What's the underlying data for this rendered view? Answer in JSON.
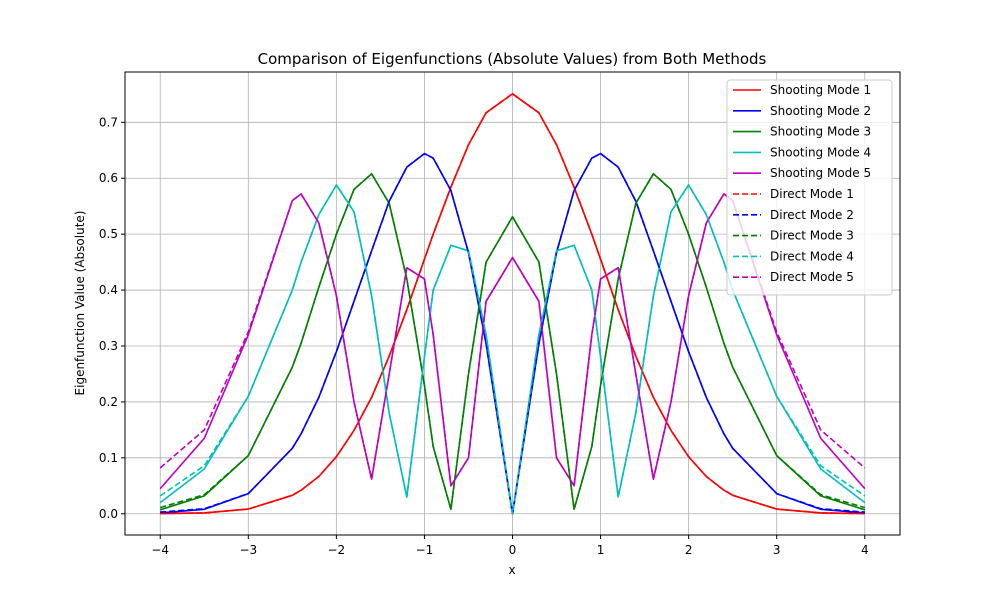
{
  "chart_data": {
    "type": "line",
    "title": "Comparison of Eigenfunctions (Absolute Values) from Both Methods",
    "xlabel": "x",
    "ylabel": "Eigenfunction Value (Absolute)",
    "xlim": [
      -4.4,
      4.4
    ],
    "ylim": [
      -0.038,
      0.79
    ],
    "xticks": [
      -4,
      -3,
      -2,
      -1,
      0,
      1,
      2,
      3,
      4
    ],
    "xtick_labels": [
      "−4",
      "−3",
      "−2",
      "−1",
      "0",
      "1",
      "2",
      "3",
      "4"
    ],
    "yticks": [
      0.0,
      0.1,
      0.2,
      0.3,
      0.4,
      0.5,
      0.6,
      0.7
    ],
    "ytick_labels": [
      "0.0",
      "0.1",
      "0.2",
      "0.3",
      "0.4",
      "0.5",
      "0.6",
      "0.7"
    ],
    "grid": true,
    "legend_position": "top-right",
    "x": [
      -4.0,
      -3.5,
      -3.0,
      -2.5,
      -2.4,
      -2.2,
      -2.0,
      -1.8,
      -1.6,
      -1.4,
      -1.2,
      -1.0,
      -0.9,
      -0.7,
      -0.5,
      -0.3,
      0.0,
      0.3,
      0.5,
      0.7,
      0.9,
      1.0,
      1.2,
      1.4,
      1.6,
      1.8,
      2.0,
      2.2,
      2.4,
      2.5,
      3.0,
      3.5,
      4.0
    ],
    "series": [
      {
        "name": "Shooting Mode 1",
        "color": "#ff0000",
        "dash": "solid",
        "values": [
          0.0002,
          0.0016,
          0.0084,
          0.033,
          0.0421,
          0.0667,
          0.102,
          0.149,
          0.208,
          0.282,
          0.365,
          0.455,
          0.5,
          0.584,
          0.66,
          0.717,
          0.751,
          0.717,
          0.66,
          0.584,
          0.5,
          0.455,
          0.365,
          0.282,
          0.208,
          0.149,
          0.102,
          0.0667,
          0.0421,
          0.033,
          0.0084,
          0.0016,
          0.0002
        ]
      },
      {
        "name": "Shooting Mode 2",
        "color": "#0000ff",
        "dash": "solid",
        "values": [
          0.0015,
          0.008,
          0.036,
          0.117,
          0.143,
          0.208,
          0.29,
          0.38,
          0.47,
          0.559,
          0.62,
          0.644,
          0.636,
          0.578,
          0.467,
          0.304,
          0.0,
          0.304,
          0.467,
          0.578,
          0.636,
          0.644,
          0.62,
          0.559,
          0.47,
          0.38,
          0.29,
          0.208,
          0.143,
          0.117,
          0.036,
          0.008,
          0.0015
        ]
      },
      {
        "name": "Shooting Mode 3",
        "color": "#008000",
        "dash": "solid",
        "values": [
          0.007,
          0.032,
          0.104,
          0.262,
          0.305,
          0.405,
          0.5,
          0.58,
          0.608,
          0.555,
          0.42,
          0.23,
          0.12,
          0.008,
          0.25,
          0.45,
          0.531,
          0.45,
          0.25,
          0.008,
          0.12,
          0.23,
          0.42,
          0.555,
          0.608,
          0.58,
          0.5,
          0.405,
          0.305,
          0.262,
          0.104,
          0.032,
          0.007
        ]
      },
      {
        "name": "Shooting Mode 4",
        "color": "#00bfbf",
        "dash": "solid",
        "values": [
          0.02,
          0.08,
          0.21,
          0.4,
          0.45,
          0.535,
          0.588,
          0.54,
          0.39,
          0.18,
          0.03,
          0.28,
          0.4,
          0.48,
          0.47,
          0.32,
          0.0,
          0.32,
          0.47,
          0.48,
          0.4,
          0.28,
          0.03,
          0.18,
          0.39,
          0.54,
          0.588,
          0.535,
          0.45,
          0.4,
          0.21,
          0.08,
          0.02
        ]
      },
      {
        "name": "Shooting Mode 5",
        "color": "#bf00bf",
        "dash": "solid",
        "values": [
          0.045,
          0.135,
          0.32,
          0.56,
          0.572,
          0.52,
          0.39,
          0.2,
          0.062,
          0.25,
          0.44,
          0.42,
          0.32,
          0.05,
          0.1,
          0.38,
          0.458,
          0.38,
          0.1,
          0.05,
          0.32,
          0.42,
          0.44,
          0.25,
          0.062,
          0.2,
          0.39,
          0.52,
          0.572,
          0.56,
          0.32,
          0.135,
          0.045
        ]
      },
      {
        "name": "Direct Mode 1",
        "color": "#ff0000",
        "dash": "dashed",
        "values": [
          0.0002,
          0.0016,
          0.0084,
          0.033,
          0.0421,
          0.0667,
          0.102,
          0.149,
          0.208,
          0.282,
          0.365,
          0.455,
          0.5,
          0.584,
          0.66,
          0.717,
          0.751,
          0.717,
          0.66,
          0.584,
          0.5,
          0.455,
          0.365,
          0.282,
          0.208,
          0.149,
          0.102,
          0.0667,
          0.0421,
          0.033,
          0.0084,
          0.0016,
          0.0002
        ]
      },
      {
        "name": "Direct Mode 2",
        "color": "#0000ff",
        "dash": "dashed",
        "values": [
          0.003,
          0.009,
          0.036,
          0.117,
          0.143,
          0.208,
          0.29,
          0.38,
          0.47,
          0.559,
          0.62,
          0.644,
          0.636,
          0.578,
          0.467,
          0.304,
          0.0,
          0.304,
          0.467,
          0.578,
          0.636,
          0.644,
          0.62,
          0.559,
          0.47,
          0.38,
          0.29,
          0.208,
          0.143,
          0.117,
          0.036,
          0.009,
          0.003
        ]
      },
      {
        "name": "Direct Mode 3",
        "color": "#008000",
        "dash": "dashed",
        "values": [
          0.011,
          0.034,
          0.104,
          0.262,
          0.305,
          0.405,
          0.5,
          0.58,
          0.608,
          0.555,
          0.42,
          0.23,
          0.12,
          0.008,
          0.25,
          0.45,
          0.531,
          0.45,
          0.25,
          0.008,
          0.12,
          0.23,
          0.42,
          0.555,
          0.608,
          0.58,
          0.5,
          0.405,
          0.305,
          0.262,
          0.104,
          0.034,
          0.011
        ]
      },
      {
        "name": "Direct Mode 4",
        "color": "#00bfbf",
        "dash": "dashed",
        "values": [
          0.032,
          0.086,
          0.21,
          0.4,
          0.45,
          0.535,
          0.588,
          0.54,
          0.39,
          0.18,
          0.03,
          0.28,
          0.4,
          0.48,
          0.47,
          0.32,
          0.0,
          0.32,
          0.47,
          0.48,
          0.4,
          0.28,
          0.03,
          0.18,
          0.39,
          0.54,
          0.588,
          0.535,
          0.45,
          0.4,
          0.21,
          0.086,
          0.032
        ]
      },
      {
        "name": "Direct Mode 5",
        "color": "#bf00bf",
        "dash": "dashed",
        "values": [
          0.082,
          0.15,
          0.325,
          0.56,
          0.572,
          0.52,
          0.39,
          0.2,
          0.062,
          0.25,
          0.44,
          0.42,
          0.32,
          0.05,
          0.1,
          0.38,
          0.458,
          0.38,
          0.1,
          0.05,
          0.32,
          0.42,
          0.44,
          0.25,
          0.062,
          0.2,
          0.39,
          0.52,
          0.572,
          0.56,
          0.325,
          0.15,
          0.082
        ]
      }
    ]
  }
}
